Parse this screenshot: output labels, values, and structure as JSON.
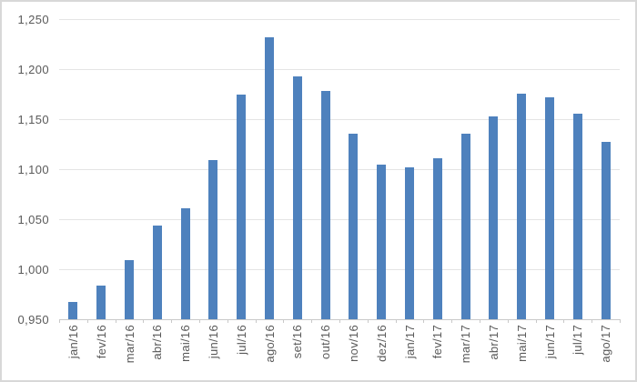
{
  "chart_data": {
    "type": "bar",
    "title": "",
    "legend": "none",
    "grid": true,
    "categories": [
      "jan/16",
      "fev/16",
      "mar/16",
      "abr/16",
      "mai/16",
      "jun/16",
      "jul/16",
      "ago/16",
      "set/16",
      "out/16",
      "nov/16",
      "dez/16",
      "jan/17",
      "fev/17",
      "mar/17",
      "abr/17",
      "mai/17",
      "jun/17",
      "jul/17",
      "ago/17"
    ],
    "values": [
      0.967,
      0.983,
      1.009,
      1.043,
      1.061,
      1.109,
      1.174,
      1.232,
      1.193,
      1.178,
      1.135,
      1.104,
      1.102,
      1.111,
      1.135,
      1.153,
      1.175,
      1.172,
      1.155,
      1.127
    ],
    "y_tick_labels": [
      "1,250",
      "1,200",
      "1,150",
      "1,100",
      "1,050",
      "1,000",
      "0,950"
    ],
    "y_tick_values": [
      1.25,
      1.2,
      1.15,
      1.1,
      1.05,
      1.0,
      0.95
    ],
    "ylim": [
      0.95,
      1.25
    ],
    "y_major_step": 0.05,
    "x_label_rotation_deg": 90,
    "colors": {
      "bar": "#4E81BD",
      "gridline": "#E4E4E4",
      "axis_line": "#C9C9C9",
      "tick_mark": "#C9C9C9",
      "axis_text": "#595959",
      "background": "#FFFFFF",
      "frame_border": "#D8D8D8"
    }
  }
}
